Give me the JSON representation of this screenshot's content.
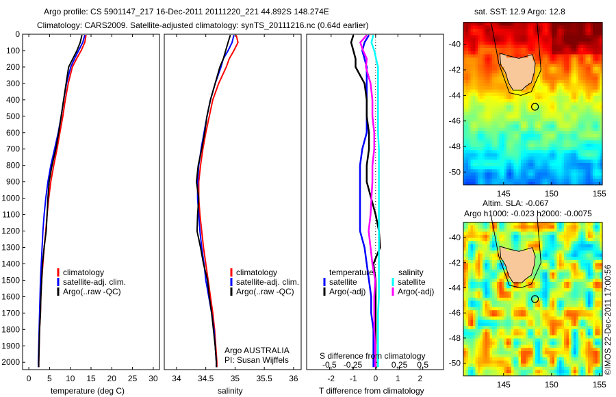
{
  "title": {
    "line1": "Argo profile: CS 5901147_217 16-Dec-2011 20111220_221 44.892S 148.274E",
    "line2": "Climatology: CARS2009. Satellite-adjusted climatology: synTS_20111216.nc (0.64d earlier)"
  },
  "stamp": "©IMOS 22-Dec-2011 17:00:56",
  "credit": {
    "line1": "Argo AUSTRALIA",
    "line2": "PI: Susan Wijffels"
  },
  "colors": {
    "climatology": "#ff0000",
    "satellite": "#0000ff",
    "argo": "#000000",
    "s_satellite": "#00ffff",
    "s_argo": "#ff00ff",
    "land": "#f9c89a"
  },
  "chart_data": [
    {
      "type": "line",
      "name": "temperature",
      "xlabel": "temperature (deg C)",
      "ylabel": "",
      "xlim": [
        -1.5,
        31.5
      ],
      "ylim": [
        2045,
        0
      ],
      "xticks": [
        0,
        5,
        10,
        15,
        20,
        25,
        30
      ],
      "yticks": [
        0,
        100,
        200,
        300,
        400,
        500,
        600,
        700,
        800,
        900,
        1000,
        1100,
        1200,
        1300,
        1400,
        1500,
        1600,
        1700,
        1800,
        1900,
        2000
      ],
      "depth": [
        5,
        50,
        100,
        150,
        200,
        300,
        400,
        500,
        600,
        700,
        800,
        900,
        1000,
        1100,
        1200,
        1300,
        1400,
        1500,
        1600,
        1700,
        1800,
        1900,
        2000,
        2030
      ],
      "legend": [
        "climatology",
        "satellite-adj. clim.",
        "Argo(..raw -QC)"
      ],
      "series": [
        {
          "name": "climatology",
          "color": "#ff0000",
          "values": [
            13.8,
            13.5,
            12.6,
            11.5,
            10.5,
            9.5,
            8.8,
            8.2,
            7.5,
            6.8,
            6.0,
            5.3,
            4.8,
            4.4,
            4.1,
            3.7,
            3.4,
            3.1,
            2.9,
            2.8,
            2.6,
            2.5,
            2.4,
            2.4
          ]
        },
        {
          "name": "satellite-adj. clim.",
          "color": "#0000ff",
          "values": [
            13.5,
            13.0,
            12.0,
            11.0,
            10.1,
            9.1,
            8.4,
            7.8,
            7.1,
            6.2,
            5.3,
            4.6,
            4.1,
            3.7,
            3.4,
            3.2,
            3.0,
            2.8,
            2.7,
            2.6,
            2.5,
            2.4,
            2.3,
            2.3
          ]
        },
        {
          "name": "Argo(..raw -QC)",
          "color": "#000000",
          "values": [
            12.8,
            12.4,
            11.6,
            10.6,
            9.6,
            9.0,
            8.4,
            7.8,
            7.2,
            6.5,
            5.6,
            4.9,
            4.6,
            4.4,
            4.2,
            3.7,
            3.3,
            3.1,
            2.9,
            2.8,
            2.6,
            2.5,
            2.4,
            2.4
          ]
        }
      ]
    },
    {
      "type": "line",
      "name": "salinity",
      "xlabel": "salinity",
      "xlim": [
        33.79,
        36.13
      ],
      "ylim": [
        2045,
        0
      ],
      "xticks": [
        34,
        34.5,
        35,
        35.5,
        36
      ],
      "depth": [
        5,
        50,
        100,
        150,
        200,
        300,
        400,
        500,
        600,
        700,
        800,
        900,
        1000,
        1100,
        1200,
        1300,
        1400,
        1500,
        1600,
        1700,
        1800,
        1900,
        2000,
        2030
      ],
      "legend": [
        "climatology",
        "satellite-adj. clim.",
        "Argo(..raw -QC)"
      ],
      "series": [
        {
          "name": "climatology",
          "color": "#ff0000",
          "values": [
            35.02,
            35.05,
            34.98,
            34.9,
            34.85,
            34.72,
            34.62,
            34.56,
            34.5,
            34.45,
            34.41,
            34.38,
            34.38,
            34.4,
            34.43,
            34.46,
            34.5,
            34.54,
            34.58,
            34.62,
            34.65,
            34.67,
            34.69,
            34.69
          ]
        },
        {
          "name": "satellite-adj. clim.",
          "color": "#0000ff",
          "values": [
            34.98,
            34.95,
            34.88,
            34.8,
            34.76,
            34.66,
            34.58,
            34.52,
            34.47,
            34.42,
            34.38,
            34.36,
            34.36,
            34.38,
            34.4,
            34.43,
            34.47,
            34.5,
            34.55,
            34.6,
            34.64,
            34.66,
            34.68,
            34.68
          ]
        },
        {
          "name": "Argo(..raw -QC)",
          "color": "#000000",
          "values": [
            34.92,
            34.88,
            34.84,
            34.8,
            34.74,
            34.66,
            34.58,
            34.52,
            34.48,
            34.43,
            34.37,
            34.34,
            34.38,
            34.36,
            34.35,
            34.41,
            34.46,
            34.53,
            34.56,
            34.6,
            34.63,
            34.66,
            34.68,
            34.68
          ]
        }
      ]
    },
    {
      "type": "line",
      "name": "difference",
      "xlabel": "T difference from climatology",
      "x2label": "S difference from climatology",
      "xlim": [
        -3.1,
        3.05
      ],
      "x2lim": [
        -0.745,
        0.7225
      ],
      "ylim": [
        2045,
        0
      ],
      "xticks": [
        -2,
        -1,
        0,
        1,
        2
      ],
      "x2ticks": [
        -0.5,
        -0.25,
        0,
        0.25,
        0.5
      ],
      "x2ticklabels": [
        "-0.5",
        "-0.25",
        "0",
        "0.25",
        "0.5"
      ],
      "depth": [
        5,
        50,
        100,
        150,
        200,
        300,
        400,
        500,
        600,
        700,
        800,
        900,
        1000,
        1100,
        1200,
        1300,
        1400,
        1500,
        1600,
        1700,
        1800,
        1900,
        2000,
        2030
      ],
      "legend_headers": [
        "temperature",
        "salinity"
      ],
      "legend": [
        "satellite",
        "Argo(-adj)",
        "satellite",
        "Argo(-adj)"
      ],
      "series": [
        {
          "name": "T satellite",
          "axis": "T",
          "color": "#0000ff",
          "values": [
            -0.3,
            -0.5,
            -0.6,
            -0.5,
            -0.4,
            -0.4,
            -0.4,
            -0.4,
            -0.4,
            -0.6,
            -0.7,
            -0.7,
            -0.7,
            -0.7,
            -0.7,
            -0.5,
            -0.4,
            -0.3,
            -0.2,
            -0.2,
            -0.1,
            -0.1,
            -0.1,
            -0.1
          ]
        },
        {
          "name": "T Argo(-adj)",
          "axis": "T",
          "color": "#000000",
          "values": [
            -1.0,
            -1.1,
            -1.0,
            -0.9,
            -0.9,
            -0.5,
            -0.4,
            -0.4,
            -0.3,
            -0.3,
            -0.4,
            -0.4,
            -0.2,
            0.0,
            0.15,
            0.2,
            -0.1,
            0.0,
            0.0,
            0.0,
            0.0,
            0.0,
            0.0,
            0.0
          ]
        },
        {
          "name": "S satellite",
          "axis": "S",
          "color": "#00ffff",
          "values": [
            -0.03,
            -0.05,
            -0.02,
            0.0,
            0.02,
            0.02,
            0.02,
            0.02,
            0.02,
            0.03,
            0.03,
            0.03,
            0.03,
            0.03,
            0.03,
            0.03,
            0.03,
            0.03,
            0.03,
            0.02,
            0.02,
            0.02,
            0.02,
            0.02
          ]
        },
        {
          "name": "S Argo(-adj)",
          "axis": "S",
          "color": "#ff00ff",
          "values": [
            -0.1,
            -0.17,
            -0.14,
            -0.1,
            -0.11,
            -0.06,
            -0.04,
            -0.04,
            -0.02,
            -0.02,
            -0.04,
            -0.04,
            -0.05,
            -0.06,
            -0.08,
            -0.06,
            -0.04,
            -0.01,
            -0.02,
            -0.02,
            -0.02,
            -0.01,
            -0.01,
            -0.01
          ]
        }
      ]
    },
    {
      "type": "heatmap",
      "name": "sst-map",
      "title": "sat. SST: 12.9 Argo: 12.8",
      "lonlim": [
        140.8,
        155.3
      ],
      "latlim": [
        -51.0,
        -38.3
      ],
      "xticks": [
        145,
        150,
        155
      ],
      "yticks": [
        -40,
        -42,
        -44,
        -46,
        -48,
        -50
      ],
      "profile_location": [
        148.274,
        -44.892
      ]
    },
    {
      "type": "heatmap",
      "name": "sla-map",
      "title_line1": "Altim. SLA: -0.067",
      "title_line2": "Argo h1000: -0.023 h2000: -0.0075",
      "lonlim": [
        140.8,
        155.3
      ],
      "latlim": [
        -51.0,
        -38.8
      ],
      "xticks": [
        145,
        150,
        155
      ],
      "yticks": [
        -40,
        -42,
        -44,
        -46,
        -48,
        -50
      ],
      "profile_location": [
        148.274,
        -44.892
      ]
    }
  ]
}
